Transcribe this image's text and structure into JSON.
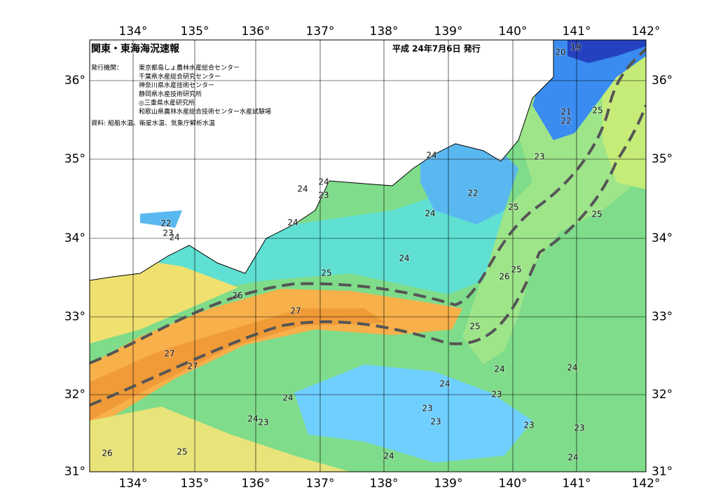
{
  "header": {
    "title": "関東・東海海況速報",
    "date": "平成 24年7月6日 発行"
  },
  "issuers": {
    "label": "発行機関：",
    "names": [
      "東京都島しょ農林水産総合センター",
      "千葉県水産総合研究センター",
      "神奈川県水産技術センター",
      "静岡県水産技術研究所",
      "◎三重県水産研究所",
      "和歌山県農林水産総合技術センター水産試験場"
    ]
  },
  "source": "資料: 船舶水温、衛星水温、気象庁解析水温",
  "axes": {
    "longitudes": [
      "134°",
      "135°",
      "136°",
      "137°",
      "138°",
      "139°",
      "140°",
      "141°",
      "142°"
    ],
    "latitudes": [
      "36°",
      "35°",
      "34°",
      "33°",
      "32°",
      "31°"
    ]
  },
  "contour_labels": [
    20,
    19,
    21,
    22,
    25,
    23,
    24,
    24,
    24,
    23,
    22,
    25,
    24,
    25,
    22,
    23,
    24,
    24,
    24,
    25,
    25,
    26,
    26,
    27,
    25,
    27,
    27,
    24,
    24,
    24,
    23,
    24,
    23,
    24,
    23,
    23,
    23,
    23,
    26,
    25,
    24,
    24
  ]
}
